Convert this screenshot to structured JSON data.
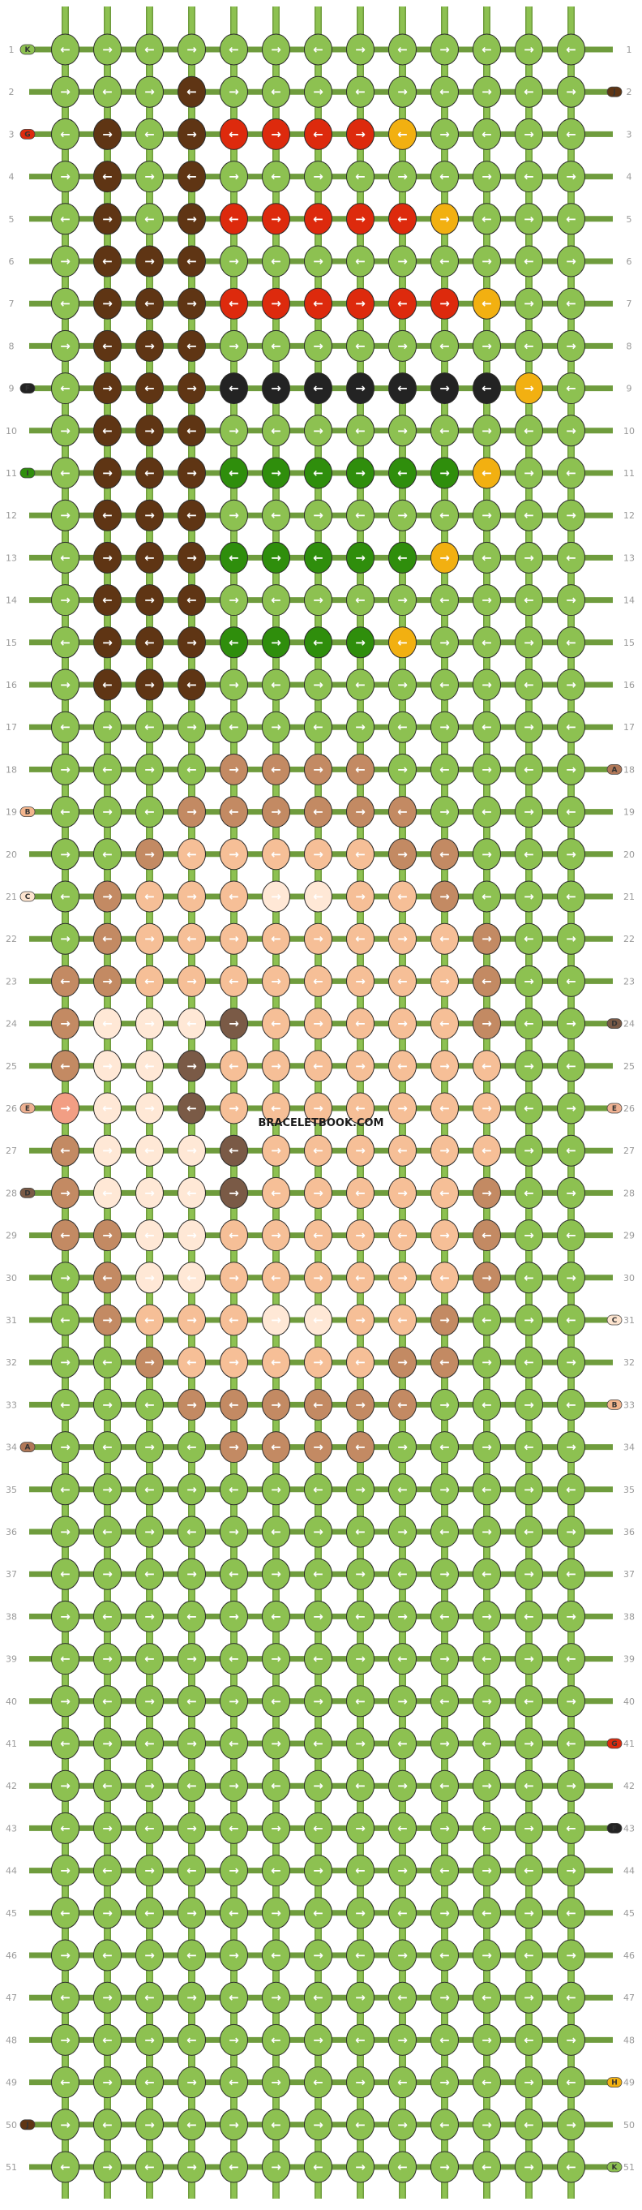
{
  "site_watermark": "BRACELETBOOK.COM",
  "row_numbers": [
    "1",
    "2",
    "3",
    "4",
    "5",
    "6",
    "7",
    "8",
    "9",
    "10",
    "11",
    "12",
    "13",
    "14",
    "15",
    "16",
    "17",
    "18",
    "19",
    "20",
    "21",
    "22",
    "23",
    "24",
    "25",
    "26",
    "27",
    "28",
    "29",
    "30",
    "31",
    "32",
    "33",
    "34",
    "35",
    "36",
    "37",
    "38",
    "39",
    "40",
    "41",
    "42",
    "43",
    "44",
    "45",
    "46",
    "47",
    "48",
    "49",
    "50",
    "51"
  ],
  "colors": {
    "A": "#b07858",
    "B": "#f3b58d",
    "C": "#fde4cf",
    "D": "#7a5a46",
    "E": "#eeb192",
    "F": "#232323",
    "G": "#dd2a0d",
    "H": "#f2b011",
    "I": "#2f8e0c",
    "J": "#5f3514",
    "K": "#8dc151",
    "background": "#8dc151",
    "skin_mid": "#c38a63",
    "skin_light": "#f6bf97",
    "skin_pale": "#ffe8d6",
    "nose_pink": "#f29e84"
  },
  "strings_left": [
    {
      "row": 1,
      "letter": "K",
      "color": "K"
    },
    {
      "row": 3,
      "letter": "G",
      "color": "G"
    },
    {
      "row": 9,
      "letter": "F",
      "color": "F"
    },
    {
      "row": 11,
      "letter": "I",
      "color": "I"
    },
    {
      "row": 19,
      "letter": "B",
      "color": "B"
    },
    {
      "row": 21,
      "letter": "C",
      "color": "C"
    },
    {
      "row": 26,
      "letter": "E",
      "color": "E"
    },
    {
      "row": 28,
      "letter": "D",
      "color": "D"
    },
    {
      "row": 34,
      "letter": "A",
      "color": "A"
    },
    {
      "row": 50,
      "letter": "J",
      "color": "J"
    }
  ],
  "strings_right": [
    {
      "row": 2,
      "letter": "J",
      "color": "J"
    },
    {
      "row": 18,
      "letter": "A",
      "color": "A"
    },
    {
      "row": 24,
      "letter": "D",
      "color": "D"
    },
    {
      "row": 26,
      "letter": "E",
      "color": "E"
    },
    {
      "row": 31,
      "letter": "C",
      "color": "C"
    },
    {
      "row": 33,
      "letter": "B",
      "color": "B"
    },
    {
      "row": 41,
      "letter": "G",
      "color": "G"
    },
    {
      "row": 43,
      "letter": "F",
      "color": "F"
    },
    {
      "row": 49,
      "letter": "H",
      "color": "H"
    },
    {
      "row": 51,
      "letter": "K",
      "color": "K"
    }
  ]
}
